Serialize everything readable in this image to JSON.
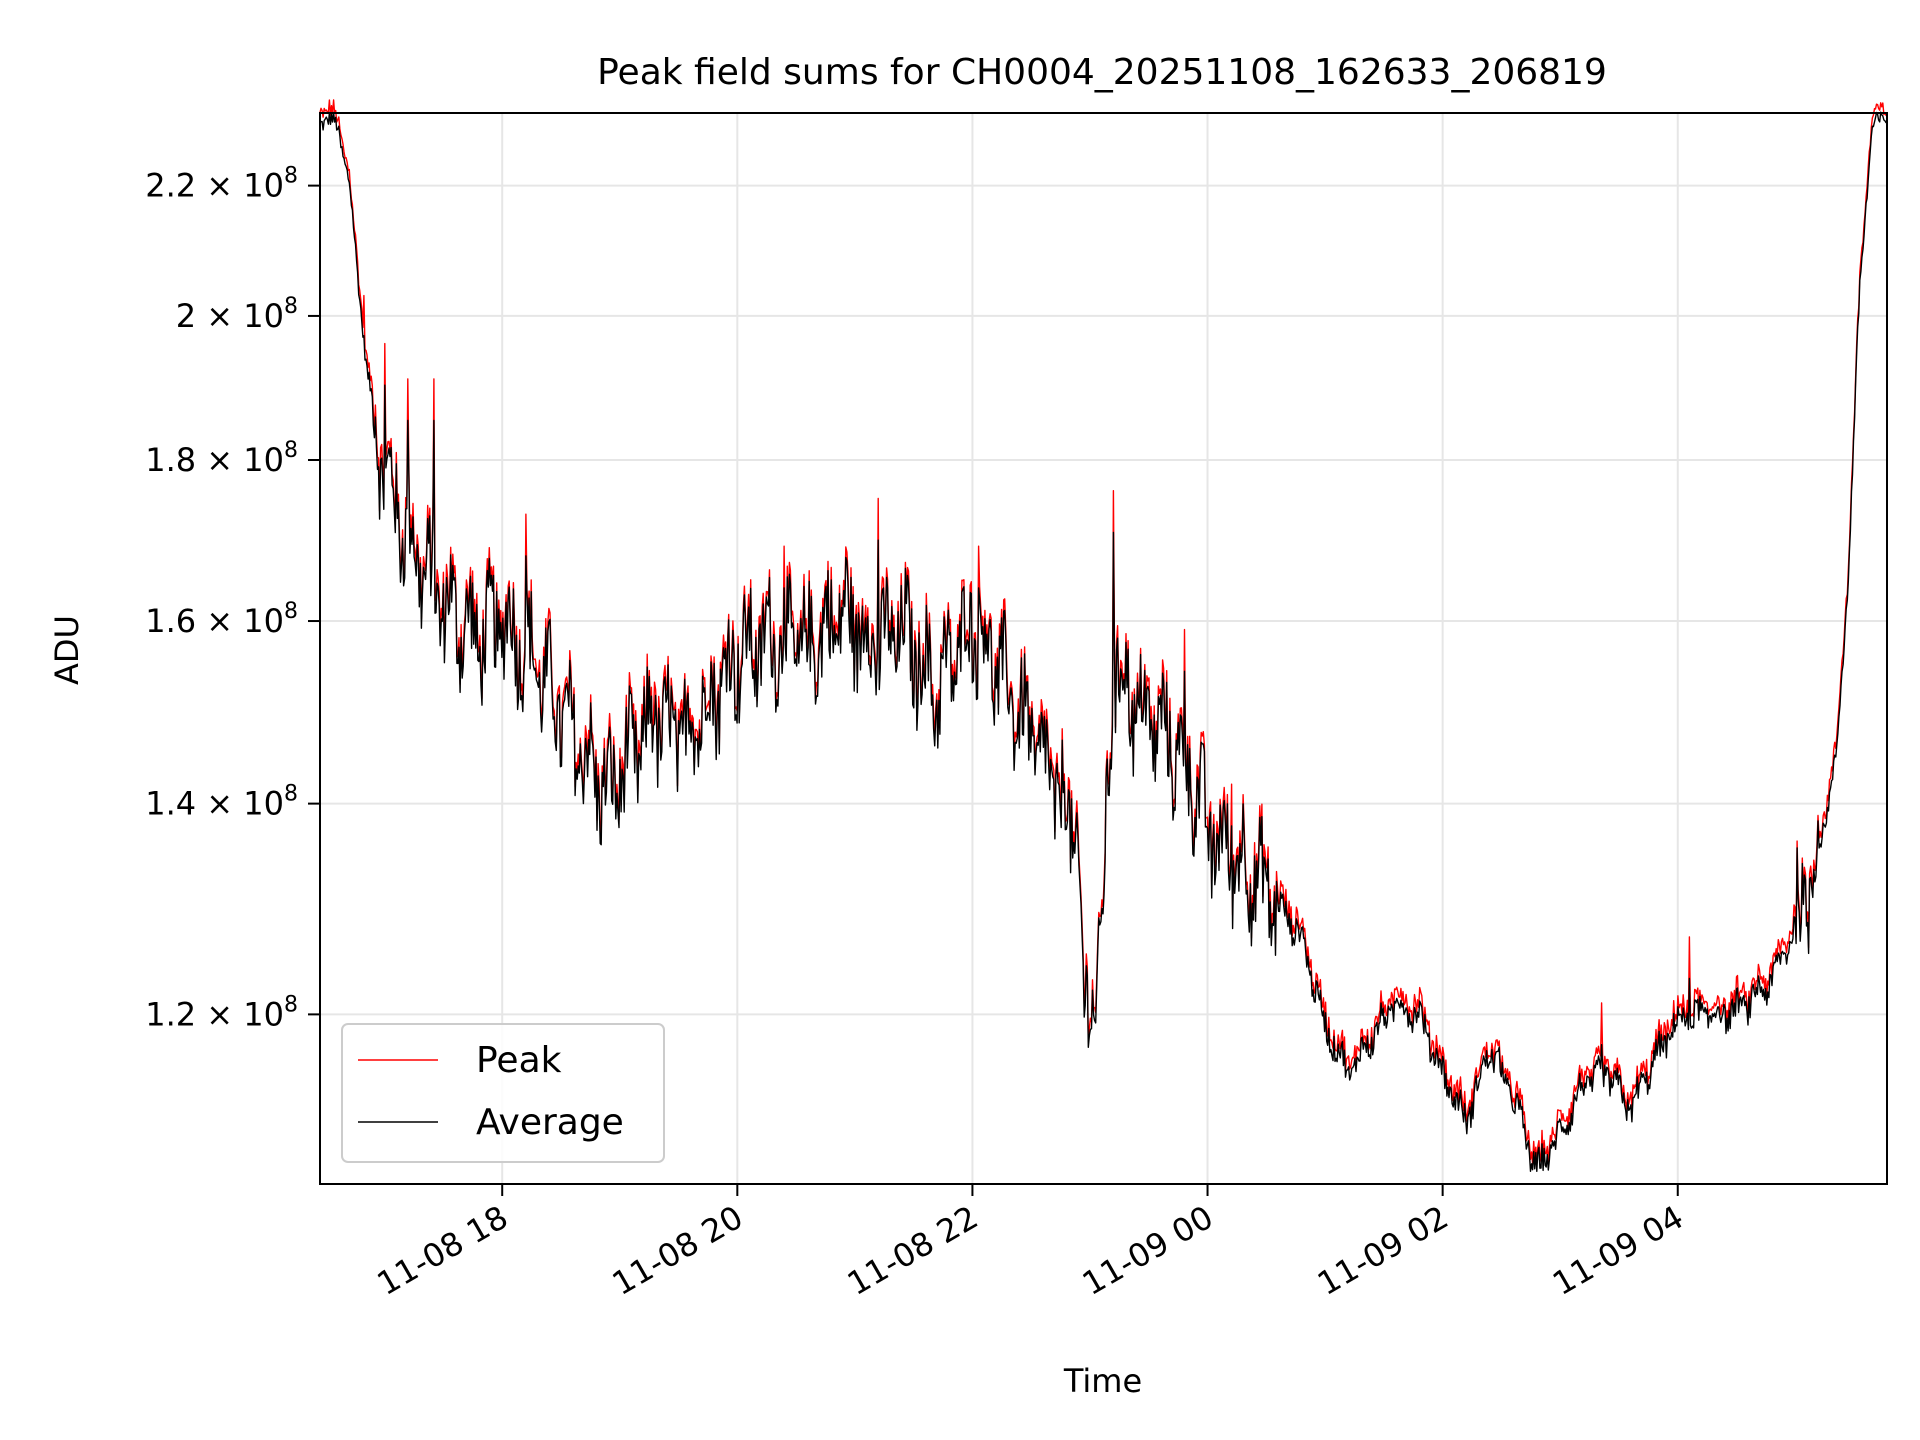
{
  "chart_data": {
    "type": "line",
    "title": "Peak field sums for CH0004_20251108_162633_206819",
    "xlabel": "Time",
    "ylabel": "ADU",
    "yscale": "log",
    "xlim": [
      16.45,
      29.78
    ],
    "ylim": [
      106000000.0,
      232000000.0
    ],
    "x_ticks": [
      {
        "value": 18,
        "label": "11-08 18"
      },
      {
        "value": 20,
        "label": "11-08 20"
      },
      {
        "value": 22,
        "label": "11-08 22"
      },
      {
        "value": 24,
        "label": "11-09 00"
      },
      {
        "value": 26,
        "label": "11-09 02"
      },
      {
        "value": 28,
        "label": "11-09 04"
      }
    ],
    "y_ticks": [
      {
        "value": 120000000.0,
        "mantissa": "1.2",
        "base": "10",
        "exp": "8"
      },
      {
        "value": 140000000.0,
        "mantissa": "1.4",
        "base": "10",
        "exp": "8"
      },
      {
        "value": 160000000.0,
        "mantissa": "1.6",
        "base": "10",
        "exp": "8"
      },
      {
        "value": 180000000.0,
        "mantissa": "1.8",
        "base": "10",
        "exp": "8"
      },
      {
        "value": 200000000.0,
        "mantissa": "2",
        "base": "10",
        "exp": "8"
      },
      {
        "value": 220000000.0,
        "mantissa": "2.2",
        "base": "10",
        "exp": "8"
      }
    ],
    "grid": true,
    "legend_position": "lower-left",
    "series": [
      {
        "name": "Peak",
        "color": "#ff0000"
      },
      {
        "name": "Average",
        "color": "#000000"
      }
    ],
    "average_trend": {
      "x": [
        16.45,
        16.6,
        16.7,
        16.85,
        17.0,
        17.2,
        17.5,
        17.8,
        18.0,
        18.3,
        18.6,
        18.9,
        19.1,
        19.3,
        19.5,
        19.7,
        20.0,
        20.3,
        20.6,
        20.9,
        21.2,
        21.4,
        21.7,
        22.0,
        22.2,
        22.5,
        22.7,
        22.9,
        22.95,
        23.1,
        23.2,
        23.4,
        23.6,
        23.9,
        24.0,
        24.2,
        24.4,
        24.6,
        24.8,
        25.0,
        25.2,
        25.4,
        25.6,
        25.8,
        26.0,
        26.2,
        26.4,
        26.6,
        26.8,
        27.0,
        27.2,
        27.4,
        27.6,
        27.8,
        28.0,
        28.2,
        28.4,
        28.6,
        28.8,
        29.0,
        29.2,
        29.35,
        29.45,
        29.55,
        29.65,
        29.78
      ],
      "y": [
        231000000.0,
        230000000.0,
        220000000.0,
        192000000.0,
        178000000.0,
        170000000.0,
        162000000.0,
        158000000.0,
        160000000.0,
        155000000.0,
        147000000.0,
        141000000.0,
        145000000.0,
        149000000.0,
        147000000.0,
        150000000.0,
        156000000.0,
        158000000.0,
        157000000.0,
        161000000.0,
        157000000.0,
        159000000.0,
        152000000.0,
        160000000.0,
        155000000.0,
        147000000.0,
        142000000.0,
        136000000.0,
        119000000.0,
        126000000.0,
        155000000.0,
        150000000.0,
        148000000.0,
        142000000.0,
        137000000.0,
        135000000.0,
        133000000.0,
        130000000.0,
        127000000.0,
        119000000.0,
        115000000.0,
        118000000.0,
        121000000.0,
        120000000.0,
        115000000.0,
        111000000.0,
        117000000.0,
        113000000.0,
        107000000.0,
        110000000.0,
        114000000.0,
        115000000.0,
        112000000.0,
        116000000.0,
        119500000.0,
        120000000.0,
        120000000.0,
        121000000.0,
        123000000.0,
        128000000.0,
        135000000.0,
        145000000.0,
        165000000.0,
        205000000.0,
        229000000.0,
        232000000.0
      ]
    },
    "spikes": [
      {
        "x": 16.82,
        "y": 203000000.0
      },
      {
        "x": 17.0,
        "y": 196000000.0
      },
      {
        "x": 17.2,
        "y": 191000000.0
      },
      {
        "x": 17.42,
        "y": 191000000.0
      },
      {
        "x": 18.2,
        "y": 173000000.0
      },
      {
        "x": 19.3,
        "y": 153000000.0
      },
      {
        "x": 20.4,
        "y": 169000000.0
      },
      {
        "x": 21.2,
        "y": 175000000.0
      },
      {
        "x": 22.05,
        "y": 169000000.0
      },
      {
        "x": 23.2,
        "y": 176000000.0
      },
      {
        "x": 23.8,
        "y": 159000000.0
      },
      {
        "x": 24.2,
        "y": 142000000.0
      },
      {
        "x": 27.35,
        "y": 121000000.0
      },
      {
        "x": 28.1,
        "y": 127000000.0
      },
      {
        "x": 29.3,
        "y": 141000000.0
      }
    ]
  }
}
